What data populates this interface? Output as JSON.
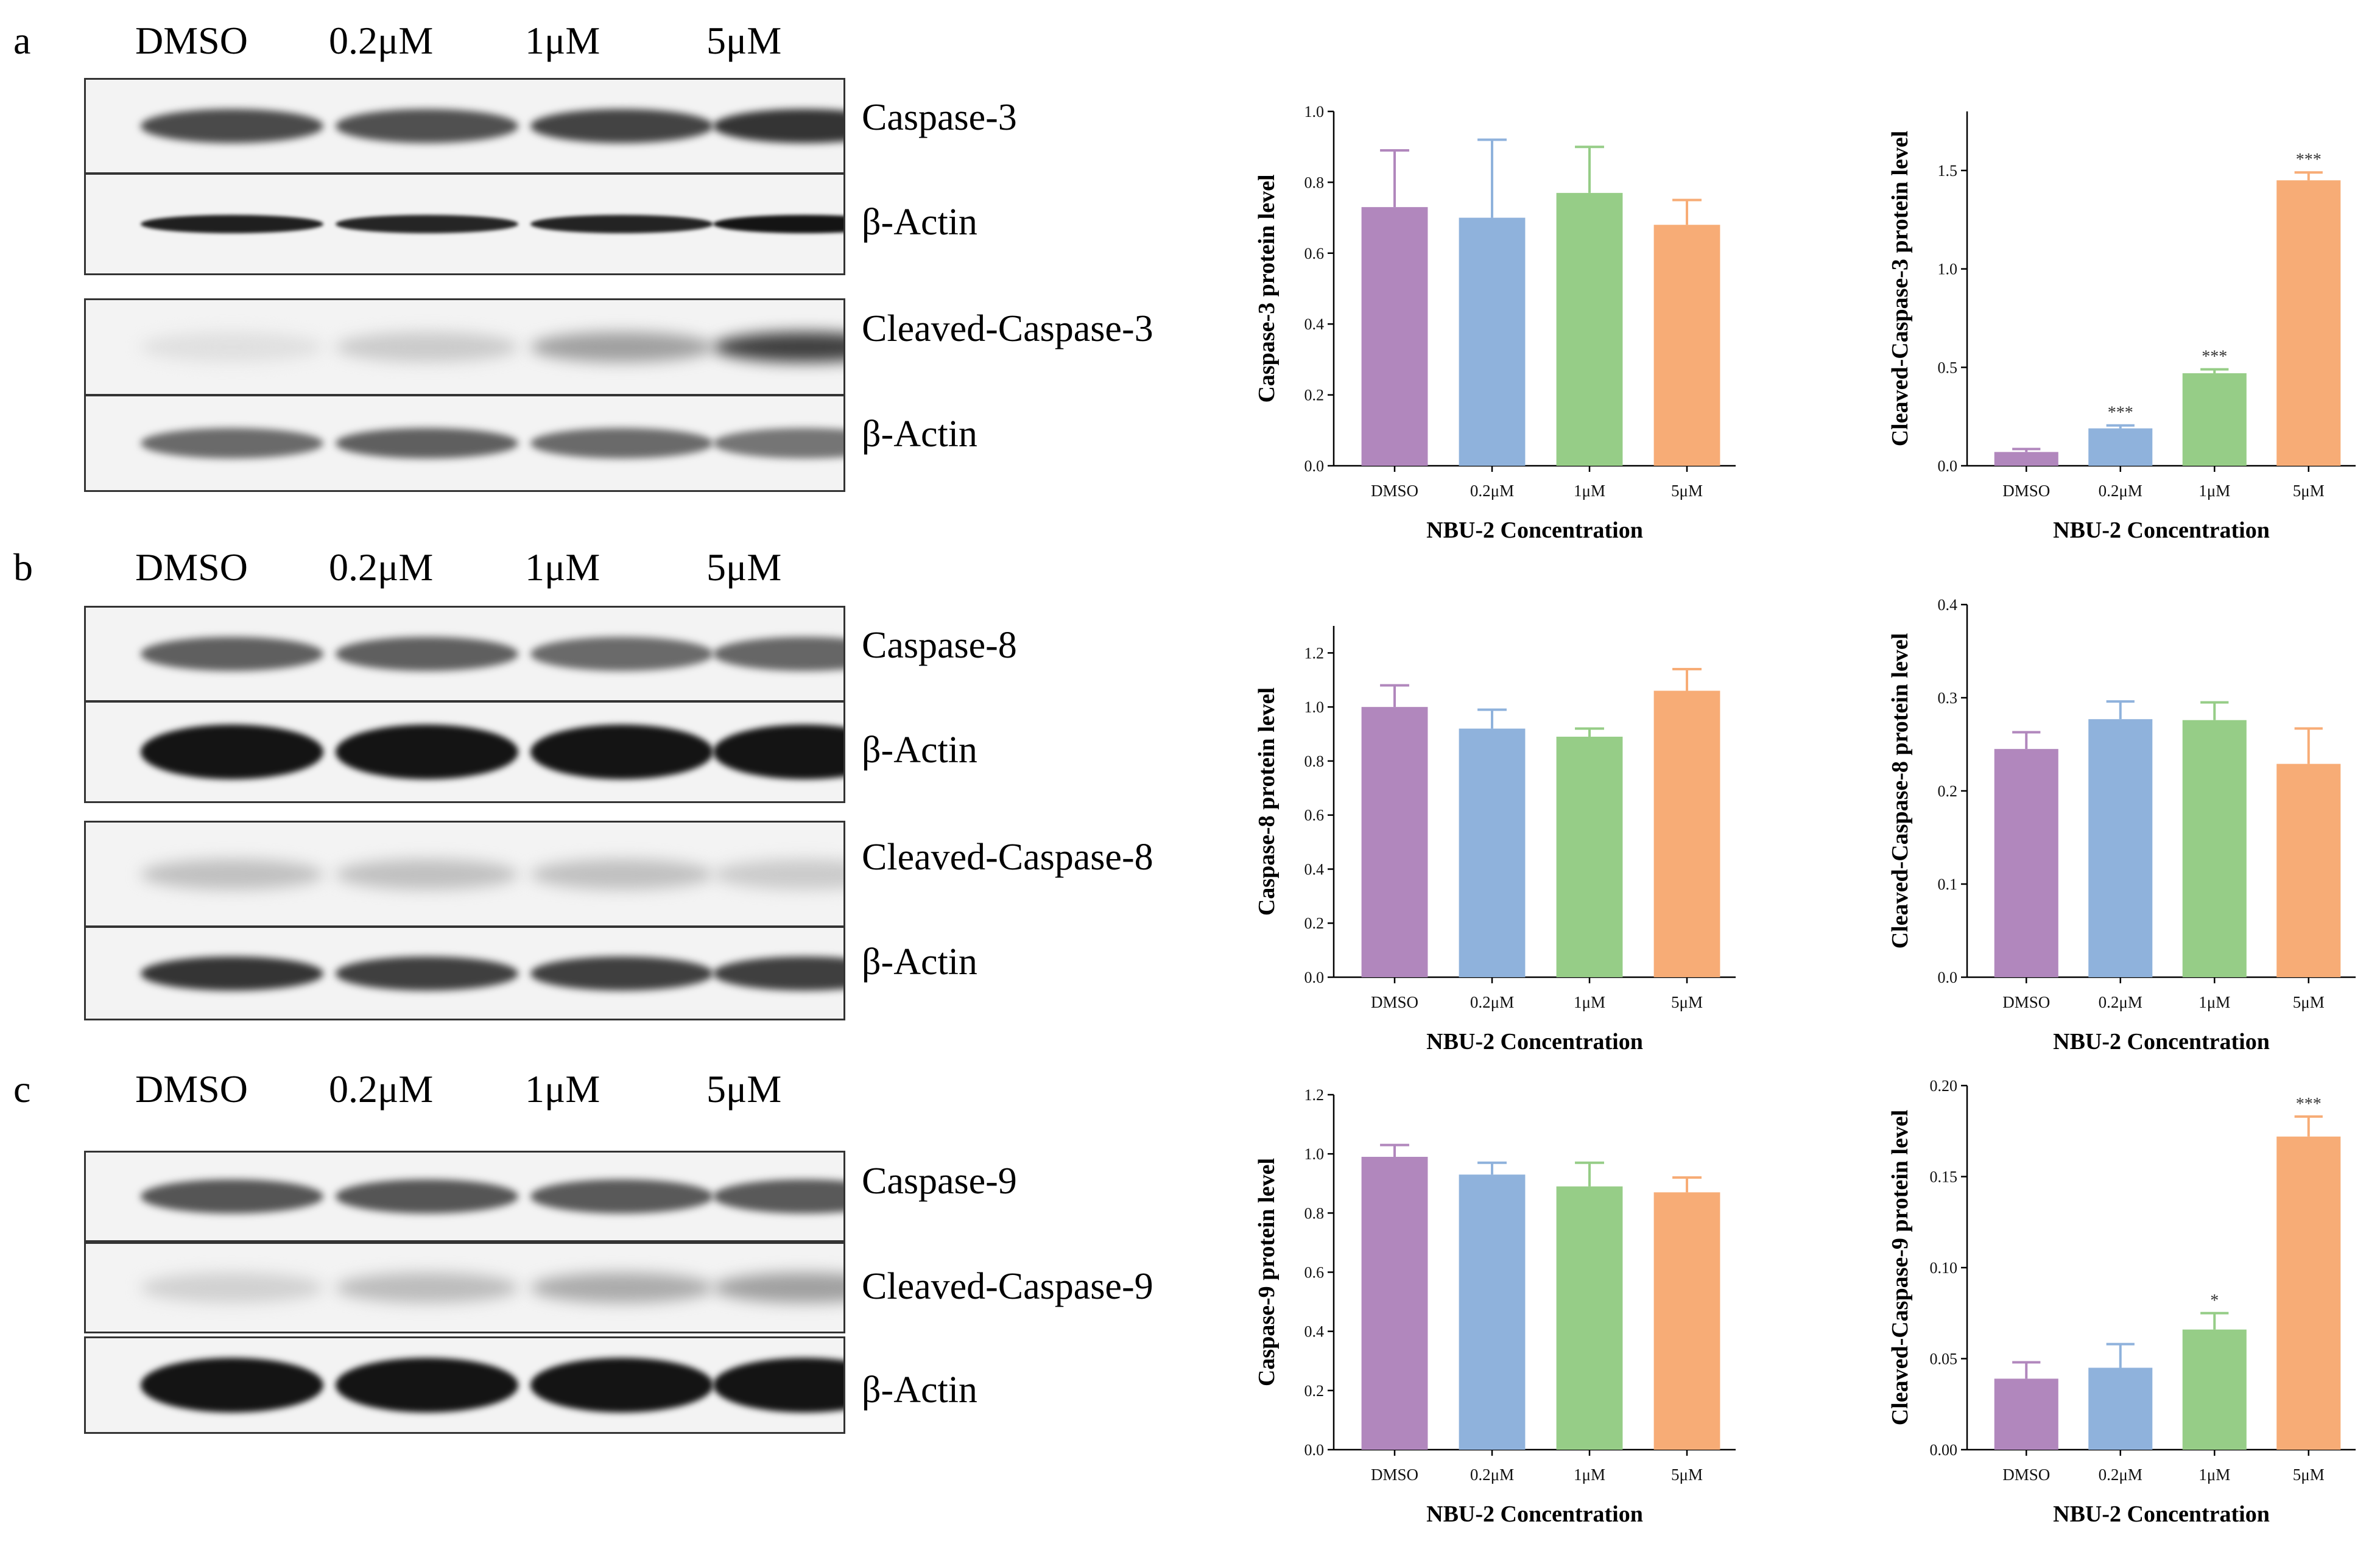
{
  "colors": {
    "DMSO": "#b187bd",
    "0.2μM": "#8fb2dc",
    "1μM": "#96cd87",
    "5μM": "#f7ac76"
  },
  "panels": [
    {
      "letter": "a",
      "lanes": [
        "DMSO",
        "0.2μM",
        "1μM",
        "5μM"
      ],
      "blots": [
        {
          "label": "Caspase-3",
          "band_style": "medium",
          "band_levels": [
            0.75,
            0.72,
            0.78,
            0.85
          ]
        },
        {
          "label": "β-Actin",
          "band_style": "thin-dark",
          "band_levels": [
            0.95,
            0.92,
            0.93,
            1.0
          ]
        },
        {
          "label": "Cleaved-Caspase-3",
          "band_style": "faint",
          "band_levels": [
            0.05,
            0.15,
            0.35,
            0.8
          ]
        },
        {
          "label": "β-Actin",
          "band_style": "medium-light",
          "band_levels": [
            0.6,
            0.65,
            0.6,
            0.55
          ]
        }
      ]
    },
    {
      "letter": "b",
      "lanes": [
        "DMSO",
        "0.2μM",
        "1μM",
        "5μM"
      ],
      "blots": [
        {
          "label": "Caspase-8",
          "band_style": "medium",
          "band_levels": [
            0.65,
            0.65,
            0.6,
            0.62
          ]
        },
        {
          "label": "β-Actin",
          "band_style": "thick-dark",
          "band_levels": [
            1.0,
            1.0,
            1.0,
            1.0
          ]
        },
        {
          "label": "Cleaved-Caspase-8",
          "band_style": "faint",
          "band_levels": [
            0.2,
            0.2,
            0.2,
            0.15
          ]
        },
        {
          "label": "β-Actin",
          "band_style": "medium",
          "band_levels": [
            0.85,
            0.8,
            0.8,
            0.8
          ]
        }
      ]
    },
    {
      "letter": "c",
      "lanes": [
        "DMSO",
        "0.2μM",
        "1μM",
        "5μM"
      ],
      "blots": [
        {
          "label": "Caspase-9",
          "band_style": "medium",
          "band_levels": [
            0.7,
            0.7,
            0.68,
            0.68
          ]
        },
        {
          "label": "Cleaved-Caspase-9",
          "band_style": "faint",
          "band_levels": [
            0.12,
            0.22,
            0.3,
            0.35
          ]
        },
        {
          "label": "β-Actin",
          "band_style": "thick-dark",
          "band_levels": [
            1.0,
            1.0,
            1.0,
            1.0
          ]
        }
      ]
    }
  ],
  "chart_data": [
    {
      "type": "bar",
      "categories": [
        "DMSO",
        "0.2μM",
        "1μM",
        "5μM"
      ],
      "values": [
        0.73,
        0.7,
        0.77,
        0.68
      ],
      "errors": [
        0.16,
        0.22,
        0.13,
        0.07
      ],
      "significance": [
        "",
        "",
        "",
        ""
      ],
      "ylabel": "Caspase-3 protein level",
      "xlabel": "NBU-2 Concentration",
      "ylim": [
        0,
        1.0
      ],
      "yticks": [
        0.0,
        0.2,
        0.4,
        0.6,
        0.8,
        1.0
      ],
      "ytick_labels": [
        "0.0",
        "0.2",
        "0.4",
        "0.6",
        "0.8",
        "1.0"
      ]
    },
    {
      "type": "bar",
      "categories": [
        "DMSO",
        "0.2μM",
        "1μM",
        "5μM"
      ],
      "values": [
        0.07,
        0.19,
        0.47,
        1.45
      ],
      "errors": [
        0.015,
        0.015,
        0.02,
        0.04
      ],
      "significance": [
        "",
        "***",
        "***",
        "***"
      ],
      "ylabel": "Cleaved-Caspase-3 protein level",
      "xlabel": "NBU-2 Concentration",
      "ylim": [
        0,
        1.8
      ],
      "yticks": [
        0.0,
        0.5,
        1.0,
        1.5
      ],
      "ytick_labels": [
        "0.0",
        "0.5",
        "1.0",
        "1.5"
      ]
    },
    {
      "type": "bar",
      "categories": [
        "DMSO",
        "0.2μM",
        "1μM",
        "5μM"
      ],
      "values": [
        1.0,
        0.92,
        0.89,
        1.06
      ],
      "errors": [
        0.08,
        0.07,
        0.03,
        0.08
      ],
      "significance": [
        "",
        "",
        "",
        ""
      ],
      "ylabel": "Caspase-8 protein level",
      "xlabel": "NBU-2 Concentration",
      "ylim": [
        0,
        1.3
      ],
      "yticks": [
        0.0,
        0.2,
        0.4,
        0.6,
        0.8,
        1.0,
        1.2
      ],
      "ytick_labels": [
        "0.0",
        "0.2",
        "0.4",
        "0.6",
        "0.8",
        "1.0",
        "1.2"
      ]
    },
    {
      "type": "bar",
      "categories": [
        "DMSO",
        "0.2μM",
        "1μM",
        "5μM"
      ],
      "values": [
        0.245,
        0.277,
        0.276,
        0.229
      ],
      "errors": [
        0.018,
        0.019,
        0.019,
        0.038
      ],
      "significance": [
        "",
        "",
        "",
        ""
      ],
      "ylabel": "Cleaved-Caspase-8 protein level",
      "xlabel": "NBU-2 Concentration",
      "ylim": [
        0,
        0.4
      ],
      "yticks": [
        0.0,
        0.1,
        0.2,
        0.3,
        0.4
      ],
      "ytick_labels": [
        "0.0",
        "0.1",
        "0.2",
        "0.3",
        "0.4"
      ]
    },
    {
      "type": "bar",
      "categories": [
        "DMSO",
        "0.2μM",
        "1μM",
        "5μM"
      ],
      "values": [
        0.99,
        0.93,
        0.89,
        0.87
      ],
      "errors": [
        0.04,
        0.04,
        0.08,
        0.05
      ],
      "significance": [
        "",
        "",
        "",
        ""
      ],
      "ylabel": "Caspase-9 protein level",
      "xlabel": "NBU-2 Concentration",
      "ylim": [
        0,
        1.2
      ],
      "yticks": [
        0.0,
        0.2,
        0.4,
        0.6,
        0.8,
        1.0,
        1.2
      ],
      "ytick_labels": [
        "0.0",
        "0.2",
        "0.4",
        "0.6",
        "0.8",
        "1.0",
        "1.2"
      ]
    },
    {
      "type": "bar",
      "categories": [
        "DMSO",
        "0.2μM",
        "1μM",
        "5μM"
      ],
      "values": [
        0.039,
        0.045,
        0.066,
        0.172
      ],
      "errors": [
        0.009,
        0.013,
        0.009,
        0.011
      ],
      "significance": [
        "",
        "",
        "*",
        "***"
      ],
      "ylabel": "Cleaved-Caspase-9 protein level",
      "xlabel": "NBU-2 Concentration",
      "ylim": [
        0,
        0.2
      ],
      "yticks": [
        0.0,
        0.05,
        0.1,
        0.15,
        0.2
      ],
      "ytick_labels": [
        "0.00",
        "0.05",
        "0.10",
        "0.15",
        "0.20"
      ]
    }
  ]
}
